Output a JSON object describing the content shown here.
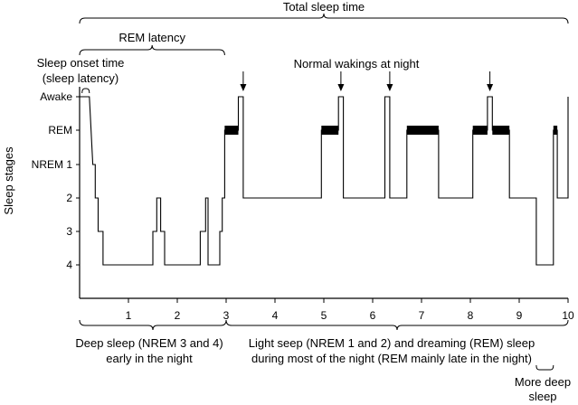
{
  "chart_data": {
    "type": "line",
    "ylabel": "Sleep stages",
    "xlim": [
      0,
      10
    ],
    "x_ticks": [
      "1",
      "2",
      "3",
      "4",
      "5",
      "6",
      "7",
      "8",
      "9",
      "10"
    ],
    "stages": [
      "Awake",
      "REM",
      "NREM 1",
      "2",
      "3",
      "4"
    ],
    "hypnogram": [
      {
        "x": 0.0,
        "stage": "Awake"
      },
      {
        "x": 0.05,
        "stage": "Awake"
      },
      {
        "x": 0.05,
        "stage": "Awake"
      },
      {
        "x": 0.2,
        "stage": "Awake"
      },
      {
        "x": 0.2,
        "stage": "Awake"
      },
      {
        "x": 0.27,
        "stage": "NREM 1"
      },
      {
        "x": 0.27,
        "stage": "NREM 1"
      },
      {
        "x": 0.32,
        "stage": "NREM 1"
      },
      {
        "x": 0.32,
        "stage": "2"
      },
      {
        "x": 0.38,
        "stage": "2"
      },
      {
        "x": 0.38,
        "stage": "3"
      },
      {
        "x": 0.48,
        "stage": "3"
      },
      {
        "x": 0.48,
        "stage": "4"
      },
      {
        "x": 1.5,
        "stage": "4"
      },
      {
        "x": 1.5,
        "stage": "3"
      },
      {
        "x": 1.58,
        "stage": "3"
      },
      {
        "x": 1.58,
        "stage": "2"
      },
      {
        "x": 1.66,
        "stage": "2"
      },
      {
        "x": 1.66,
        "stage": "3"
      },
      {
        "x": 1.74,
        "stage": "3"
      },
      {
        "x": 1.74,
        "stage": "4"
      },
      {
        "x": 2.47,
        "stage": "4"
      },
      {
        "x": 2.47,
        "stage": "3"
      },
      {
        "x": 2.58,
        "stage": "3"
      },
      {
        "x": 2.58,
        "stage": "2"
      },
      {
        "x": 2.63,
        "stage": "2"
      },
      {
        "x": 2.63,
        "stage": "4"
      },
      {
        "x": 2.87,
        "stage": "4"
      },
      {
        "x": 2.87,
        "stage": "3"
      },
      {
        "x": 2.92,
        "stage": "3"
      },
      {
        "x": 2.92,
        "stage": "2"
      },
      {
        "x": 2.97,
        "stage": "2"
      },
      {
        "x": 2.97,
        "stage": "REM"
      },
      {
        "x": 3.25,
        "stage": "REM"
      },
      {
        "x": 3.25,
        "stage": "Awake"
      },
      {
        "x": 3.35,
        "stage": "Awake"
      },
      {
        "x": 3.35,
        "stage": "2"
      },
      {
        "x": 4.95,
        "stage": "2"
      },
      {
        "x": 4.95,
        "stage": "REM"
      },
      {
        "x": 5.3,
        "stage": "REM"
      },
      {
        "x": 5.3,
        "stage": "Awake"
      },
      {
        "x": 5.4,
        "stage": "Awake"
      },
      {
        "x": 5.4,
        "stage": "2"
      },
      {
        "x": 6.25,
        "stage": "2"
      },
      {
        "x": 6.25,
        "stage": "Awake"
      },
      {
        "x": 6.35,
        "stage": "Awake"
      },
      {
        "x": 6.35,
        "stage": "2"
      },
      {
        "x": 6.7,
        "stage": "2"
      },
      {
        "x": 6.7,
        "stage": "REM"
      },
      {
        "x": 7.35,
        "stage": "REM"
      },
      {
        "x": 7.35,
        "stage": "2"
      },
      {
        "x": 8.05,
        "stage": "2"
      },
      {
        "x": 8.05,
        "stage": "REM"
      },
      {
        "x": 8.35,
        "stage": "REM"
      },
      {
        "x": 8.35,
        "stage": "Awake"
      },
      {
        "x": 8.45,
        "stage": "Awake"
      },
      {
        "x": 8.45,
        "stage": "REM"
      },
      {
        "x": 8.8,
        "stage": "REM"
      },
      {
        "x": 8.8,
        "stage": "2"
      },
      {
        "x": 9.35,
        "stage": "2"
      },
      {
        "x": 9.35,
        "stage": "4"
      },
      {
        "x": 9.7,
        "stage": "4"
      },
      {
        "x": 9.7,
        "stage": "REM"
      },
      {
        "x": 9.78,
        "stage": "REM"
      },
      {
        "x": 9.78,
        "stage": "2"
      },
      {
        "x": 10.0,
        "stage": "2"
      },
      {
        "x": 10.0,
        "stage": "Awake"
      }
    ],
    "rem_periods": [
      [
        2.97,
        3.25
      ],
      [
        4.95,
        5.3
      ],
      [
        6.7,
        7.35
      ],
      [
        8.05,
        8.35
      ],
      [
        8.45,
        8.8
      ],
      [
        9.7,
        9.78
      ]
    ],
    "awakening_arrows_x": [
      3.35,
      5.35,
      6.35,
      8.4
    ],
    "top_brackets": [
      {
        "label": "Total sleep time",
        "from": 0.0,
        "to": 10.0
      },
      {
        "label": "REM latency",
        "from": 0.0,
        "to": 2.97
      },
      {
        "label_lines": [
          "Sleep onset time",
          "(sleep latency)"
        ],
        "from": 0.05,
        "to": 0.2
      }
    ],
    "annotations": {
      "awakenings_label": "Normal wakings at night"
    },
    "bottom_brackets": [
      {
        "label_lines": [
          "Deep sleep (NREM 3 and 4)",
          "early in the night"
        ],
        "from": 0.0,
        "to": 3.0
      },
      {
        "label_lines": [
          "Light seep (NREM 1 and 2) and dreaming (REM) sleep",
          "during most of the night (REM mainly late in the night)"
        ],
        "from": 3.0,
        "to": 10.0
      },
      {
        "label_lines": [
          "More deep",
          "sleep"
        ],
        "from": 9.35,
        "to": 9.7
      }
    ],
    "grid": false,
    "legend": "none"
  }
}
